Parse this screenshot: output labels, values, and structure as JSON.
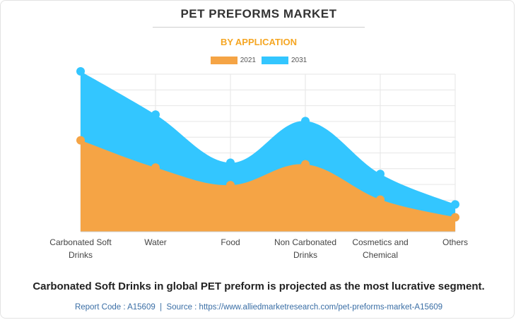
{
  "header": {
    "title": "PET PREFORMS MARKET",
    "subtitle": "BY APPLICATION"
  },
  "footer": {
    "headline": "Carbonated Soft Drinks in global PET preform is projected as the most lucrative segment.",
    "report_code_label": "Report Code : A15609",
    "separator": "|",
    "source_label": "Source : https://www.alliedmarketresearch.com/pet-preforms-market-A15609"
  },
  "colors": {
    "series_2021": "#f5a445",
    "series_2031": "#33c6ff",
    "grid": "#e6e6e6"
  },
  "chart_data": {
    "type": "area",
    "title": "PET PREFORMS MARKET",
    "subtitle": "BY APPLICATION",
    "categories": [
      [
        "Carbonated Soft",
        "Drinks"
      ],
      [
        "Water"
      ],
      [
        "Food"
      ],
      [
        "Non Carbonated",
        "Drinks"
      ],
      [
        "Cosmetics and",
        "Chemical"
      ],
      [
        "Others"
      ]
    ],
    "ylim": [
      0,
      10
    ],
    "grid": true,
    "legend_position": "top-center",
    "series": [
      {
        "name": "2031",
        "values": [
          10.0,
          7.3,
          4.3,
          6.9,
          3.6,
          1.7
        ]
      },
      {
        "name": "2021",
        "values": [
          5.7,
          4.0,
          2.9,
          4.2,
          2.0,
          0.9
        ]
      }
    ]
  }
}
